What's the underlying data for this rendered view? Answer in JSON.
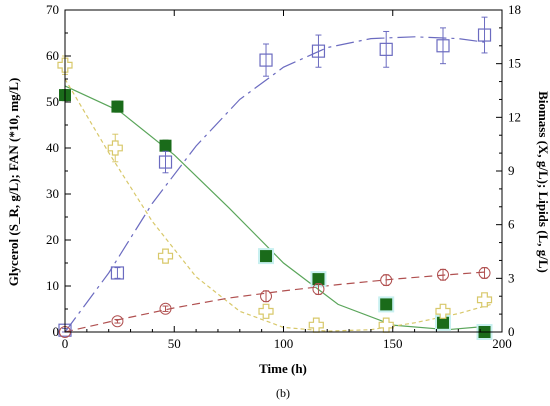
{
  "chart_data": {
    "type": "scatter",
    "xlabel": "Time (h)",
    "ylabel_left": "Glycerol (S_R, g/L); FAN (*10, mg/L)",
    "ylabel_right": "Biomass (X, g/L); Lipids (L, g/L)",
    "caption": "(b)",
    "xlim": [
      0,
      200
    ],
    "ylim_left": [
      0,
      70
    ],
    "ylim_right": [
      0,
      18
    ],
    "x_ticks": [
      0,
      50,
      100,
      150,
      200
    ],
    "y_ticks_left": [
      0,
      10,
      20,
      30,
      40,
      50,
      60,
      70
    ],
    "y_ticks_right": [
      0,
      3,
      6,
      9,
      12,
      15,
      18
    ],
    "colors": {
      "glycerol": "#1a6b1a",
      "glycerol_fit": "#5aa55a",
      "fan": "#d8c86a",
      "biomass": "#6b6bc0",
      "lipids": "#b05050",
      "highlight": "#c8f0f0"
    },
    "series": [
      {
        "id": "glycerol",
        "axis": "left",
        "marker": "filled-square",
        "x": [
          0,
          24,
          46,
          92,
          116,
          147,
          173,
          192
        ],
        "y": [
          51.5,
          49,
          40.5,
          16.5,
          11.5,
          6,
          2,
          0
        ],
        "err": [
          1.2,
          1.2,
          1.2,
          1,
          1,
          1,
          0.5,
          0.5
        ],
        "fit": [
          [
            0,
            53.5
          ],
          [
            25,
            48
          ],
          [
            50,
            38.5
          ],
          [
            75,
            27
          ],
          [
            100,
            15
          ],
          [
            125,
            6
          ],
          [
            150,
            1.5
          ],
          [
            175,
            0.5
          ],
          [
            192,
            1.2
          ]
        ]
      },
      {
        "id": "fan",
        "axis": "left",
        "marker": "open-cross",
        "x": [
          0,
          23,
          46,
          92,
          115,
          147,
          173,
          192
        ],
        "y": [
          58,
          40,
          16.5,
          4.5,
          1.5,
          1.5,
          4.5,
          7
        ],
        "err": [
          2,
          3,
          1,
          1,
          1,
          1,
          1,
          1
        ],
        "fit": [
          [
            0,
            55
          ],
          [
            20,
            39
          ],
          [
            40,
            24
          ],
          [
            60,
            12
          ],
          [
            80,
            4.5
          ],
          [
            100,
            1
          ],
          [
            120,
            0.2
          ],
          [
            140,
            0.5
          ],
          [
            160,
            2
          ],
          [
            180,
            4
          ],
          [
            195,
            6
          ]
        ]
      },
      {
        "id": "biomass",
        "axis": "right",
        "marker": "open-square",
        "x": [
          0,
          24,
          46,
          92,
          116,
          147,
          173,
          192
        ],
        "y": [
          0.1,
          3.3,
          9.5,
          15.2,
          15.7,
          15.8,
          16,
          16.6
        ],
        "err": [
          0.1,
          0.3,
          0.6,
          0.9,
          0.9,
          1,
          1,
          1
        ],
        "fit": [
          [
            0,
            0
          ],
          [
            20,
            3.3
          ],
          [
            40,
            7.2
          ],
          [
            60,
            10.4
          ],
          [
            80,
            13
          ],
          [
            100,
            14.8
          ],
          [
            120,
            15.9
          ],
          [
            140,
            16.4
          ],
          [
            160,
            16.5
          ],
          [
            180,
            16.4
          ],
          [
            192,
            16.2
          ]
        ]
      },
      {
        "id": "lipids",
        "axis": "right",
        "marker": "open-circle",
        "x": [
          0,
          24,
          46,
          92,
          116,
          147,
          173,
          192
        ],
        "y": [
          0,
          0.6,
          1.3,
          2,
          2.4,
          2.9,
          3.2,
          3.3
        ],
        "err": [
          0.05,
          0.1,
          0.15,
          0.3,
          0.3,
          0.3,
          0.3,
          0.3
        ],
        "fit": [
          [
            0,
            0
          ],
          [
            25,
            0.7
          ],
          [
            50,
            1.35
          ],
          [
            75,
            1.9
          ],
          [
            100,
            2.3
          ],
          [
            125,
            2.65
          ],
          [
            150,
            2.95
          ],
          [
            175,
            3.2
          ],
          [
            192,
            3.35
          ]
        ]
      }
    ]
  }
}
